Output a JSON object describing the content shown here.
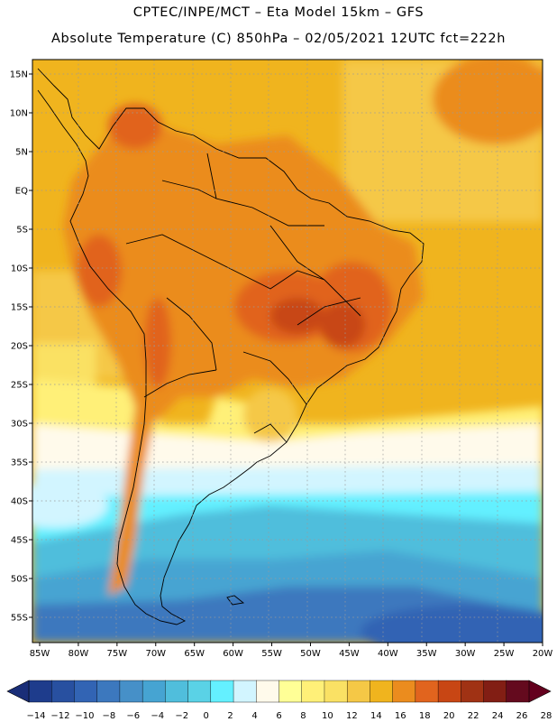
{
  "header": {
    "line1": "CPTEC/INPE/MCT –  Eta Model 15km – GFS",
    "line2": "Absolute Temperature (C) 850hPa – 02/05/2021 12UTC fct=222h"
  },
  "axes": {
    "lat_labels": [
      "15N",
      "10N",
      "5N",
      "EQ",
      "5S",
      "10S",
      "15S",
      "20S",
      "25S",
      "30S",
      "35S",
      "40S",
      "45S",
      "50S",
      "55S"
    ],
    "lat_values": [
      15,
      10,
      5,
      0,
      -5,
      -10,
      -15,
      -20,
      -25,
      -30,
      -35,
      -40,
      -45,
      -50,
      -55
    ],
    "lon_labels": [
      "85W",
      "80W",
      "75W",
      "70W",
      "65W",
      "60W",
      "55W",
      "50W",
      "45W",
      "40W",
      "35W",
      "30W",
      "25W",
      "20W"
    ],
    "lon_values": [
      -85,
      -80,
      -75,
      -70,
      -65,
      -60,
      -55,
      -50,
      -45,
      -40,
      -35,
      -30,
      -25,
      -20
    ]
  },
  "colorbar": {
    "labels": [
      "-14",
      "-12",
      "-10",
      "-8",
      "-6",
      "-4",
      "-2",
      "0",
      "2",
      "4",
      "6",
      "8",
      "10",
      "12",
      "14",
      "16",
      "18",
      "20",
      "22",
      "24",
      "26",
      "28"
    ],
    "colors": [
      "#1e3c8c",
      "#2850a0",
      "#3264b4",
      "#3c78be",
      "#4690c8",
      "#46a4d2",
      "#50bedc",
      "#5ad2e6",
      "#64f0ff",
      "#d2f5ff",
      "#fffaeb",
      "#ffff96",
      "#fff078",
      "#fae164",
      "#f5c846",
      "#f0b41e",
      "#eb8c1e",
      "#e1641e",
      "#c84614",
      "#a03214",
      "#821e14",
      "#640a1e"
    ]
  },
  "legend": {
    "arrow_left_color": "#1a2e78",
    "arrow_right_color": "#64001e"
  }
}
